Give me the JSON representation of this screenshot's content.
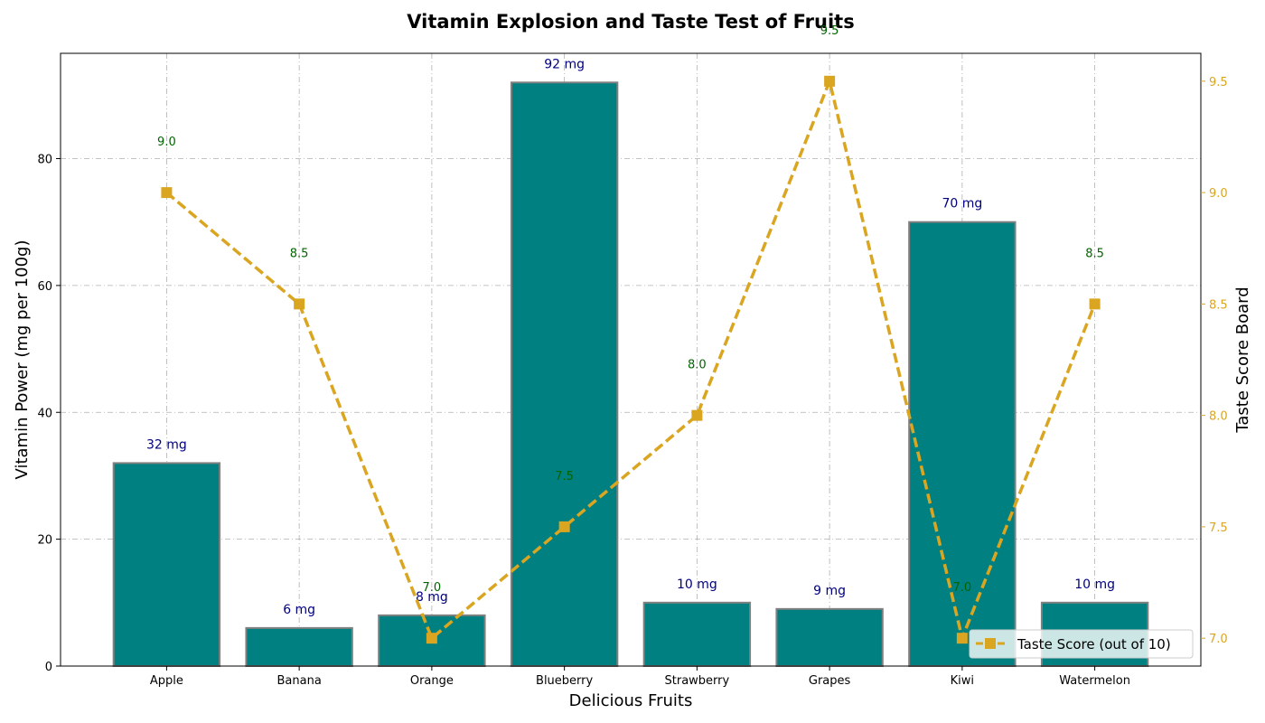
{
  "chart_data": {
    "type": "bar",
    "title": "Vitamin Explosion and Taste Test of Fruits",
    "xlabel": "Delicious Fruits",
    "ylabel": "Vitamin Power (mg per 100g)",
    "y2label": "Taste Score Board",
    "categories": [
      "Apple",
      "Banana",
      "Orange",
      "Blueberry",
      "Strawberry",
      "Grapes",
      "Kiwi",
      "Watermelon"
    ],
    "ylim": [
      0,
      96.6
    ],
    "y2lim": [
      6.875,
      9.625
    ],
    "yticks": [
      0,
      20,
      40,
      60,
      80
    ],
    "y2ticks": [
      7.0,
      7.5,
      8.0,
      8.5,
      9.0,
      9.5
    ],
    "grid": true,
    "legend_position": "lower-right",
    "series": [
      {
        "kind": "bar",
        "axis": "left",
        "values": [
          32,
          6,
          8,
          92,
          10,
          9,
          70,
          10
        ],
        "labels": [
          "32 mg",
          "6 mg",
          "8 mg",
          "92 mg",
          "10 mg",
          "9 mg",
          "70 mg",
          "10 mg"
        ],
        "color": "#008080",
        "edge_color": "#808080"
      },
      {
        "kind": "line",
        "axis": "right",
        "name": "Taste Score (out of 10)",
        "values": [
          9.0,
          8.5,
          7.0,
          7.5,
          8.0,
          9.5,
          7.0,
          8.5
        ],
        "labels": [
          "9.0",
          "8.5",
          "7.0",
          "7.5",
          "8.0",
          "9.5",
          "7.0",
          "8.5"
        ],
        "color": "#DAA520",
        "marker": "square",
        "linestyle": "dashed"
      }
    ],
    "colors": {
      "bar_label": "#000080",
      "point_label": "#006400",
      "right_axis": "#DAA520",
      "grid": "#b0b0b0"
    }
  }
}
